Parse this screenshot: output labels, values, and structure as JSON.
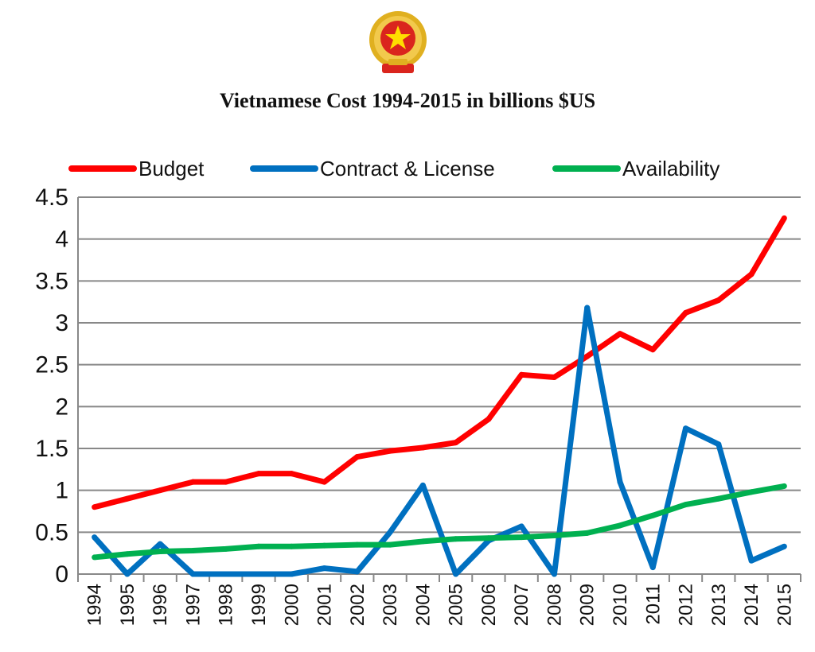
{
  "chart_data": {
    "type": "line",
    "title": "Vietnamese Cost 1994-2015 in billions $US",
    "xlabel": "",
    "ylabel": "",
    "categories": [
      "1994",
      "1995",
      "1996",
      "1997",
      "1998",
      "1999",
      "2000",
      "2001",
      "2002",
      "2003",
      "2004",
      "2005",
      "2006",
      "2007",
      "2008",
      "2009",
      "2010",
      "2011",
      "2012",
      "2013",
      "2014",
      "2015"
    ],
    "ylim": [
      0,
      4.5
    ],
    "yticks": [
      "0",
      "0.5",
      "1",
      "1.5",
      "2",
      "2.5",
      "3",
      "3.5",
      "4",
      "4.5"
    ],
    "grid": true,
    "legend_position": "top",
    "series": [
      {
        "name": "Budget",
        "color": "#ff0000",
        "values": [
          0.8,
          0.9,
          1.0,
          1.1,
          1.1,
          1.2,
          1.2,
          1.1,
          1.4,
          1.47,
          1.51,
          1.57,
          1.85,
          2.38,
          2.35,
          2.6,
          2.87,
          2.68,
          3.12,
          3.27,
          3.58,
          4.25
        ]
      },
      {
        "name": "Contract & License",
        "color": "#0070c0",
        "values": [
          0.44,
          0.0,
          0.36,
          0.0,
          0.0,
          0.0,
          0.0,
          0.07,
          0.03,
          0.5,
          1.06,
          0.0,
          0.4,
          0.57,
          0.0,
          3.18,
          1.1,
          0.08,
          1.74,
          1.55,
          0.16,
          0.33
        ]
      },
      {
        "name": "Availability",
        "color": "#00b050",
        "values": [
          0.2,
          0.24,
          0.27,
          0.28,
          0.3,
          0.33,
          0.33,
          0.34,
          0.35,
          0.35,
          0.39,
          0.42,
          0.43,
          0.44,
          0.46,
          0.49,
          0.58,
          0.7,
          0.83,
          0.9,
          0.98,
          1.05
        ]
      }
    ]
  }
}
